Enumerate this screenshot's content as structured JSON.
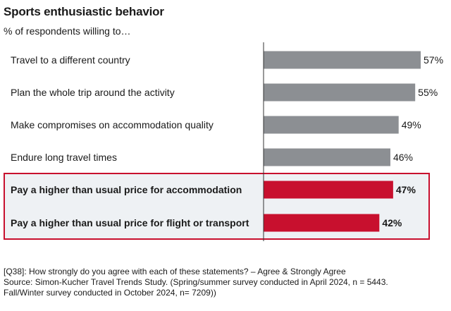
{
  "header": {
    "title": "Sports enthusiastic behavior",
    "subtitle": "% of respondents willing to…"
  },
  "chart_data": {
    "type": "bar",
    "orientation": "horizontal",
    "categories": [
      "Travel to a different country",
      "Plan the whole trip around the activity",
      "Make compromises on accommodation quality",
      "Endure long travel times",
      "Pay a higher than usual price for accommodation",
      "Pay a higher than usual price for flight or transport"
    ],
    "values": [
      57,
      55,
      49,
      46,
      47,
      42
    ],
    "value_labels": [
      "57%",
      "55%",
      "49%",
      "46%",
      "47%",
      "42%"
    ],
    "highlighted": [
      false,
      false,
      false,
      false,
      true,
      true
    ],
    "xlim": [
      0,
      60
    ],
    "grid": false,
    "colors": {
      "bar": "#8c8f93",
      "bar_highlight": "#c8102e",
      "highlight_border": "#c8102e",
      "highlight_fill": "#eef1f4",
      "axis": "#333333"
    }
  },
  "footnote": {
    "question": "[Q38]: How strongly do you agree with each of these statements? – Agree & Strongly Agree",
    "source_line1": "Source:  Simon-Kucher Travel Trends Study. (Spring/summer survey conducted in April 2024, n = 5443.",
    "source_line2": "Fall/Winter survey conducted in October 2024, n= 7209))"
  }
}
